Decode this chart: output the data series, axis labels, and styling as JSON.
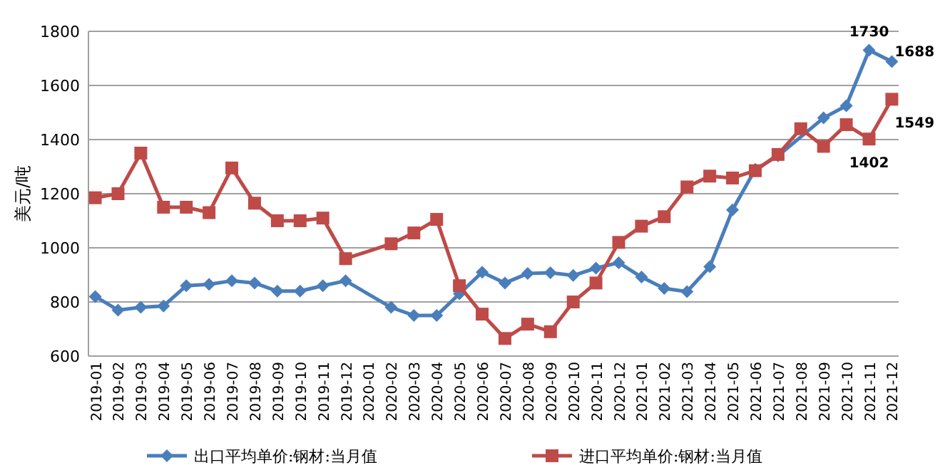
{
  "chart_data": {
    "type": "line",
    "ylabel": "美元/吨",
    "categories": [
      "2019-01",
      "2019-02",
      "2019-03",
      "2019-04",
      "2019-05",
      "2019-06",
      "2019-07",
      "2019-08",
      "2019-09",
      "2019-10",
      "2019-11",
      "2019-12",
      "2020-01",
      "2020-02",
      "2020-03",
      "2020-04",
      "2020-05",
      "2020-06",
      "2020-07",
      "2020-08",
      "2020-09",
      "2020-10",
      "2020-11",
      "2020-12",
      "2021-01",
      "2021-02",
      "2021-03",
      "2021-04",
      "2021-05",
      "2021-06",
      "2021-07",
      "2021-08",
      "2021-09",
      "2021-10",
      "2021-11",
      "2021-12"
    ],
    "series": [
      {
        "name": "出口平均单价:钢材:当月值",
        "color": "#4a7ebb",
        "marker": "diamond",
        "values": [
          820,
          770,
          780,
          785,
          860,
          865,
          878,
          870,
          840,
          840,
          860,
          878,
          null,
          780,
          750,
          750,
          830,
          910,
          870,
          905,
          908,
          898,
          925,
          945,
          892,
          850,
          838,
          930,
          1140,
          1290,
          1340,
          null,
          1480,
          1525,
          1730,
          1688
        ],
        "value_labels": [
          null,
          null,
          null,
          null,
          null,
          null,
          null,
          null,
          null,
          null,
          null,
          null,
          null,
          null,
          null,
          null,
          null,
          null,
          null,
          null,
          null,
          null,
          null,
          null,
          null,
          null,
          null,
          null,
          null,
          null,
          null,
          null,
          null,
          null,
          "1730",
          "1688"
        ]
      },
      {
        "name": "进口平均单价:钢材:当月值",
        "color": "#be4b48",
        "marker": "square",
        "values": [
          1185,
          1200,
          1350,
          1150,
          1150,
          1130,
          1295,
          1165,
          1100,
          1100,
          1110,
          960,
          null,
          1015,
          1055,
          1105,
          860,
          755,
          665,
          718,
          690,
          800,
          870,
          1020,
          1080,
          1115,
          1225,
          1265,
          1258,
          1285,
          1345,
          1440,
          1375,
          1455,
          1402,
          1549
        ],
        "value_labels": [
          null,
          null,
          null,
          null,
          null,
          null,
          null,
          null,
          null,
          null,
          null,
          null,
          null,
          null,
          null,
          null,
          null,
          null,
          null,
          null,
          null,
          null,
          null,
          null,
          null,
          null,
          null,
          null,
          null,
          null,
          null,
          null,
          null,
          null,
          "1402",
          "1549"
        ]
      }
    ],
    "ylim": [
      600,
      1800
    ],
    "yticks": [
      600,
      800,
      1000,
      1200,
      1400,
      1600,
      1800
    ],
    "grid": "y",
    "legend": "bottom"
  }
}
